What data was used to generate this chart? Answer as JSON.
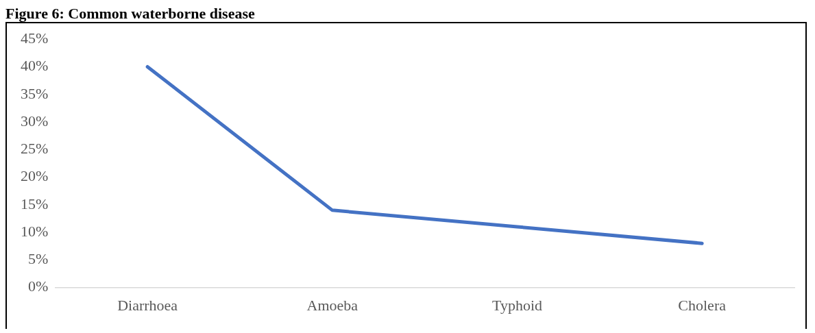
{
  "chart_data": {
    "type": "line",
    "title": "Figure 6: Common waterborne disease",
    "categories": [
      "Diarrhoea",
      "Amoeba",
      "Typhoid",
      "Cholera"
    ],
    "series": [
      {
        "color": "#4472c4",
        "values": [
          40,
          14,
          11,
          8
        ]
      }
    ],
    "ylim": [
      0,
      45
    ],
    "yticks": [
      {
        "value": 0,
        "label": "0%"
      },
      {
        "value": 5,
        "label": "5%"
      },
      {
        "value": 10,
        "label": "10%"
      },
      {
        "value": 15,
        "label": "15%"
      },
      {
        "value": 20,
        "label": "20%"
      },
      {
        "value": 25,
        "label": "25%"
      },
      {
        "value": 30,
        "label": "30%"
      },
      {
        "value": 35,
        "label": "35%"
      },
      {
        "value": 40,
        "label": "40%"
      },
      {
        "value": 45,
        "label": "45%"
      }
    ],
    "grid": false,
    "legend": false,
    "marker": "none",
    "line_style": "solid"
  }
}
